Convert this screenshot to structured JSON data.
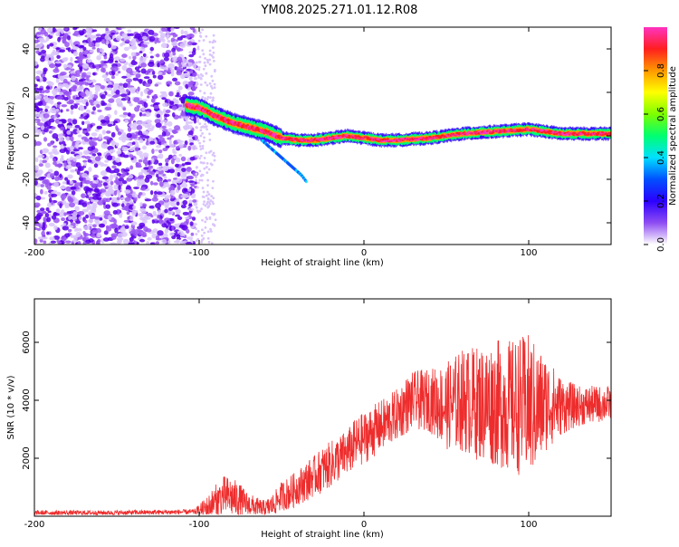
{
  "title": "YM08.2025.271.01.12.R08",
  "chart_data": [
    {
      "type": "heatmap",
      "name": "spectrogram",
      "xlabel": "Height of straight line (km)",
      "ylabel": "Frequency (Hz)",
      "xlim": [
        -200,
        150
      ],
      "ylim": [
        -50,
        50
      ],
      "xticks": [
        "-200",
        "-100",
        "0",
        "100"
      ],
      "xtick_values": [
        -200,
        -100,
        0,
        100
      ],
      "yticks": [
        "-40",
        "-20",
        "0",
        "20",
        "40"
      ],
      "ytick_values": [
        -40,
        -20,
        0,
        20,
        40
      ],
      "noise_region_km": [
        -200,
        -102
      ],
      "signal_track": {
        "x": [
          -108,
          -100,
          -90,
          -80,
          -70,
          -60,
          -50,
          -40,
          -30,
          -20,
          -10,
          0,
          10,
          20,
          40,
          60,
          80,
          100,
          120,
          150
        ],
        "y": [
          14,
          13,
          9,
          6,
          4,
          2,
          -1,
          -2,
          -2,
          -1,
          0,
          -1,
          -2,
          -2,
          -1,
          1,
          2,
          3,
          1,
          1
        ]
      },
      "secondary_track": {
        "x": [
          -62,
          -56,
          -50,
          -44,
          -38,
          -35
        ],
        "y": [
          -2,
          -6,
          -10,
          -14,
          -18,
          -21
        ]
      },
      "colorbar": {
        "label": "Normalized spectral amplitude",
        "range": [
          0,
          1
        ],
        "ticks": [
          "0.0",
          "0.2",
          "0.4",
          "0.6",
          "0.8"
        ],
        "tick_values": [
          0,
          0.2,
          0.4,
          0.6,
          0.8
        ],
        "colors": [
          "#ffffff",
          "#8e4cf2",
          "#2b00ff",
          "#0050ff",
          "#00e0ff",
          "#00ff70",
          "#7dff00",
          "#ffff00",
          "#ff9900",
          "#ff1f1f",
          "#ff33c0"
        ]
      }
    },
    {
      "type": "line",
      "name": "snr",
      "xlabel": "Height of straight line (km)",
      "ylabel": "SNR (10 * v/v)",
      "xlim": [
        -200,
        150
      ],
      "ylim": [
        0,
        7500
      ],
      "xticks": [
        "-200",
        "-100",
        "0",
        "100"
      ],
      "xtick_values": [
        -200,
        -100,
        0,
        100
      ],
      "yticks": [
        "2000",
        "4000",
        "6000"
      ],
      "ytick_values": [
        2000,
        4000,
        6000
      ],
      "color": "#ee2c2c",
      "series": [
        {
          "name": "SNR envelope",
          "x": [
            -200,
            -150,
            -103,
            -95,
            -90,
            -85,
            -80,
            -75,
            -70,
            -65,
            -60,
            -55,
            -50,
            -45,
            -40,
            -35,
            -30,
            -25,
            -20,
            -15,
            -10,
            -5,
            0,
            5,
            10,
            15,
            20,
            25,
            30,
            40,
            50,
            60,
            70,
            80,
            90,
            100,
            105,
            110,
            120,
            130,
            150
          ],
          "mean": [
            120,
            120,
            150,
            300,
            500,
            700,
            650,
            500,
            400,
            300,
            250,
            400,
            700,
            800,
            1000,
            1200,
            1400,
            1600,
            1800,
            2000,
            2200,
            2500,
            2700,
            2900,
            3100,
            3300,
            3500,
            3800,
            4000,
            4000,
            3800,
            4000,
            3900,
            3900,
            3800,
            3800,
            3700,
            3900,
            3800,
            3800,
            3900
          ],
          "spread": [
            80,
            80,
            90,
            400,
            600,
            700,
            700,
            600,
            400,
            350,
            300,
            400,
            500,
            600,
            600,
            700,
            700,
            800,
            800,
            800,
            800,
            900,
            900,
            900,
            900,
            900,
            900,
            1000,
            1000,
            1100,
            1500,
            1800,
            2000,
            2200,
            2300,
            2500,
            2200,
            1700,
            1000,
            700,
            600
          ]
        }
      ]
    }
  ]
}
